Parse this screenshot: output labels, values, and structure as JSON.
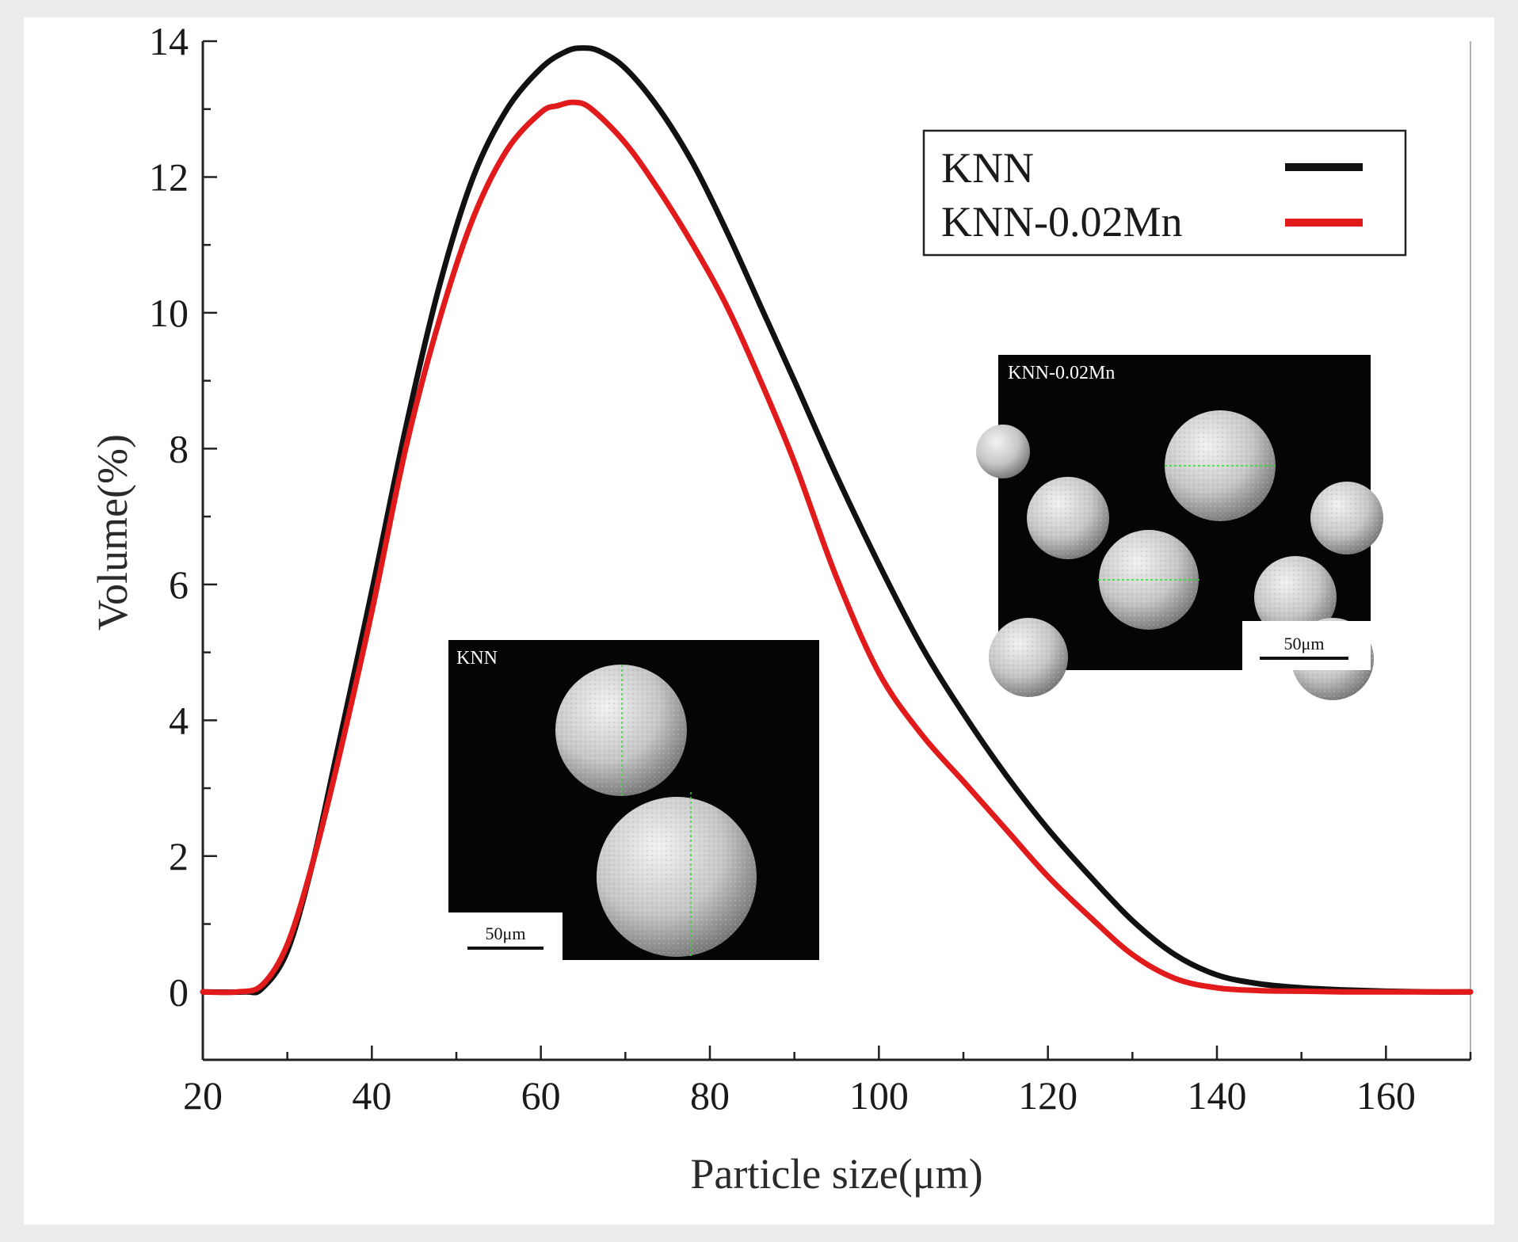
{
  "chart_data": {
    "type": "line",
    "xlabel": "Particle size(μm)",
    "ylabel": "Volume(%)",
    "xlim": [
      20,
      170
    ],
    "ylim": [
      -1,
      14
    ],
    "xticks": [
      20,
      40,
      60,
      80,
      100,
      120,
      140,
      160
    ],
    "yticks": [
      0,
      2,
      4,
      6,
      8,
      10,
      12,
      14
    ],
    "grid": false,
    "legend_position": "top-right",
    "series": [
      {
        "name": "KNN",
        "color": "#111111",
        "x": [
          20,
          25,
          27,
          30,
          33,
          36,
          40,
          44,
          48,
          52,
          56,
          60,
          63,
          65,
          67,
          70,
          74,
          78,
          82,
          86,
          90,
          95,
          100,
          105,
          110,
          115,
          120,
          125,
          130,
          135,
          140,
          145,
          150,
          155,
          160,
          165,
          170
        ],
        "y": [
          0.0,
          0.0,
          0.05,
          0.6,
          1.9,
          3.6,
          5.9,
          8.3,
          10.4,
          12.0,
          13.0,
          13.6,
          13.85,
          13.9,
          13.85,
          13.6,
          13.0,
          12.2,
          11.2,
          10.1,
          9.0,
          7.6,
          6.3,
          5.1,
          4.1,
          3.2,
          2.4,
          1.7,
          1.05,
          0.55,
          0.25,
          0.12,
          0.06,
          0.03,
          0.01,
          0.0,
          0.0
        ]
      },
      {
        "name": "KNN-0.02Mn",
        "color": "#e11b1b",
        "x": [
          20,
          24,
          27,
          30,
          33,
          36,
          40,
          44,
          48,
          52,
          56,
          60,
          62,
          64,
          66,
          70,
          74,
          78,
          82,
          86,
          90,
          95,
          100,
          105,
          110,
          115,
          120,
          125,
          130,
          135,
          140,
          145,
          150,
          155,
          160,
          165,
          170
        ],
        "y": [
          0.0,
          0.0,
          0.1,
          0.7,
          1.9,
          3.4,
          5.6,
          8.0,
          9.9,
          11.4,
          12.4,
          12.95,
          13.05,
          13.1,
          13.0,
          12.5,
          11.8,
          11.0,
          10.1,
          9.0,
          7.8,
          6.1,
          4.7,
          3.8,
          3.1,
          2.4,
          1.7,
          1.1,
          0.55,
          0.2,
          0.06,
          0.02,
          0.01,
          0.0,
          0.0,
          0.0,
          0.0
        ]
      }
    ],
    "insets": [
      {
        "label": "KNN",
        "scale_bar": "50μm"
      },
      {
        "label": "KNN-0.02Mn",
        "scale_bar": "50μm"
      }
    ]
  }
}
